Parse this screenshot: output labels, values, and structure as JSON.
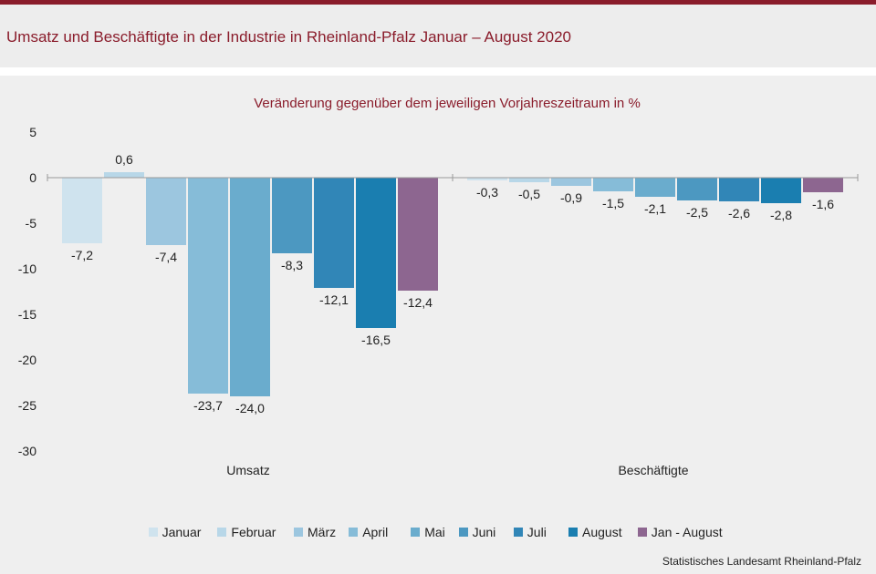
{
  "header": {
    "title": "Umsatz und Beschäftigte in der Industrie in Rheinland-Pfalz Januar – August 2020"
  },
  "footer": {
    "source": "Statistisches Landesamt Rheinland-Pfalz"
  },
  "colors": {
    "brand": "#8a1c2b",
    "series": [
      "#cfe3ee",
      "#b8d7e8",
      "#9cc6df",
      "#86bcd8",
      "#6aaccd",
      "#4c98c1",
      "#3186b7",
      "#1a7eb0",
      "#8d6690"
    ]
  },
  "chart_data": {
    "type": "bar",
    "title": "",
    "subtitle": "Veränderung  gegenüber  dem jeweiligen  Vorjahreszeitraum  in %",
    "xlabel": "",
    "ylabel": "",
    "ylim": [
      -30,
      5
    ],
    "yticks": [
      5,
      0,
      -5,
      -10,
      -15,
      -20,
      -25,
      -30
    ],
    "grid": false,
    "legend_position": "bottom",
    "categories": [
      "Umsatz",
      "Beschäftigte"
    ],
    "series": [
      {
        "name": "Januar",
        "values": [
          -7.2,
          -0.3
        ],
        "labels": [
          "-7,2",
          "-0,3"
        ]
      },
      {
        "name": "Februar",
        "values": [
          0.6,
          -0.5
        ],
        "labels": [
          "0,6",
          "-0,5"
        ]
      },
      {
        "name": "März",
        "values": [
          -7.4,
          -0.9
        ],
        "labels": [
          "-7,4",
          "-0,9"
        ]
      },
      {
        "name": "April",
        "values": [
          -23.7,
          -1.5
        ],
        "labels": [
          "-23,7",
          "-1,5"
        ]
      },
      {
        "name": "Mai",
        "values": [
          -24.0,
          -2.1
        ],
        "labels": [
          "-24,0",
          "-2,1"
        ]
      },
      {
        "name": "Juni",
        "values": [
          -8.3,
          -2.5
        ],
        "labels": [
          "-8,3",
          "-2,5"
        ]
      },
      {
        "name": "Juli",
        "values": [
          -12.1,
          -2.6
        ],
        "labels": [
          "-12,1",
          "-2,6"
        ]
      },
      {
        "name": "August",
        "values": [
          -16.5,
          -2.8
        ],
        "labels": [
          "-16,5",
          "-2,8"
        ]
      },
      {
        "name": "Jan - August",
        "values": [
          -12.4,
          -1.6
        ],
        "labels": [
          "-12,4",
          "-1,6"
        ]
      }
    ]
  }
}
